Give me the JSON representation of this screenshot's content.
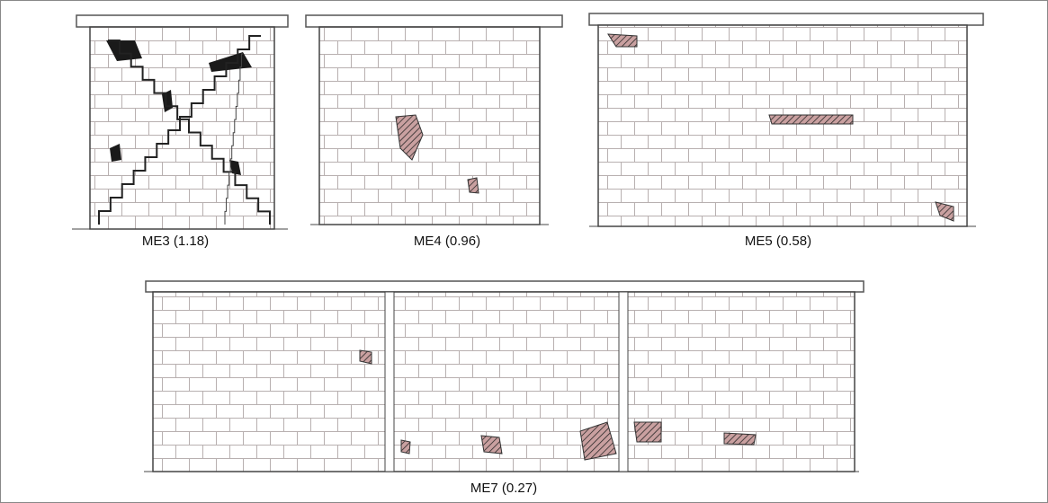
{
  "figures": [
    {
      "label": "ME3 (1.18)"
    },
    {
      "label": "ME4 (0.96)"
    },
    {
      "label": "ME5 (0.58)"
    },
    {
      "label": "ME7 (0.27)"
    }
  ]
}
